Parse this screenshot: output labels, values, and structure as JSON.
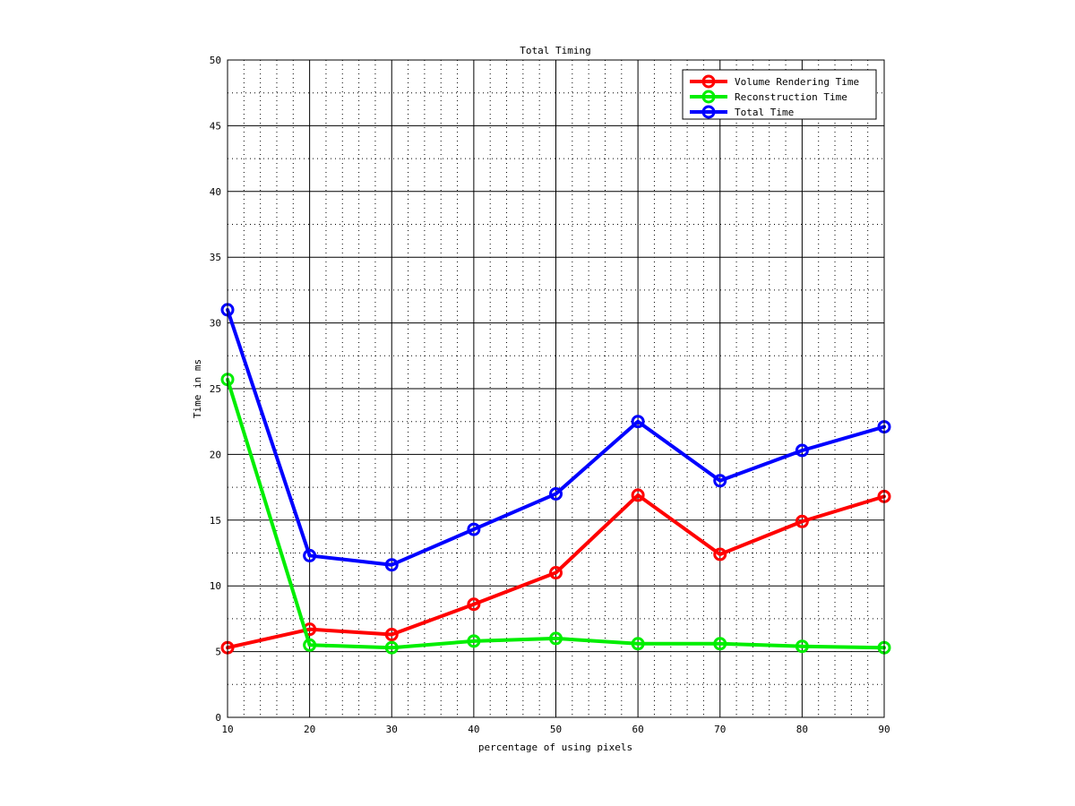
{
  "chart_data": {
    "type": "line",
    "title": "Total Timing",
    "xlabel": "percentage of using pixels",
    "ylabel": "Time in ms",
    "xlim": [
      10,
      90
    ],
    "ylim": [
      0,
      50
    ],
    "x": [
      10,
      20,
      30,
      40,
      50,
      60,
      70,
      80,
      90
    ],
    "xticks": [
      10,
      20,
      30,
      40,
      50,
      60,
      70,
      80,
      90
    ],
    "yticks": [
      0,
      5,
      10,
      15,
      20,
      25,
      30,
      35,
      40,
      45,
      50
    ],
    "grid": "major and minor",
    "legend_position": "top-right",
    "series": [
      {
        "name": "Volume Rendering Time",
        "color": "#ff0000",
        "marker": "circle",
        "values": [
          5.3,
          6.7,
          6.3,
          8.6,
          11.0,
          16.9,
          12.4,
          14.9,
          16.8
        ]
      },
      {
        "name": "Reconstruction Time",
        "color": "#00ee00",
        "marker": "circle",
        "values": [
          25.7,
          5.5,
          5.3,
          5.8,
          6.0,
          5.6,
          5.6,
          5.4,
          5.3
        ]
      },
      {
        "name": "Total Time",
        "color": "#0000ff",
        "marker": "circle",
        "values": [
          31.0,
          12.3,
          11.6,
          14.3,
          17.0,
          22.5,
          18.0,
          20.3,
          22.1
        ]
      }
    ]
  }
}
